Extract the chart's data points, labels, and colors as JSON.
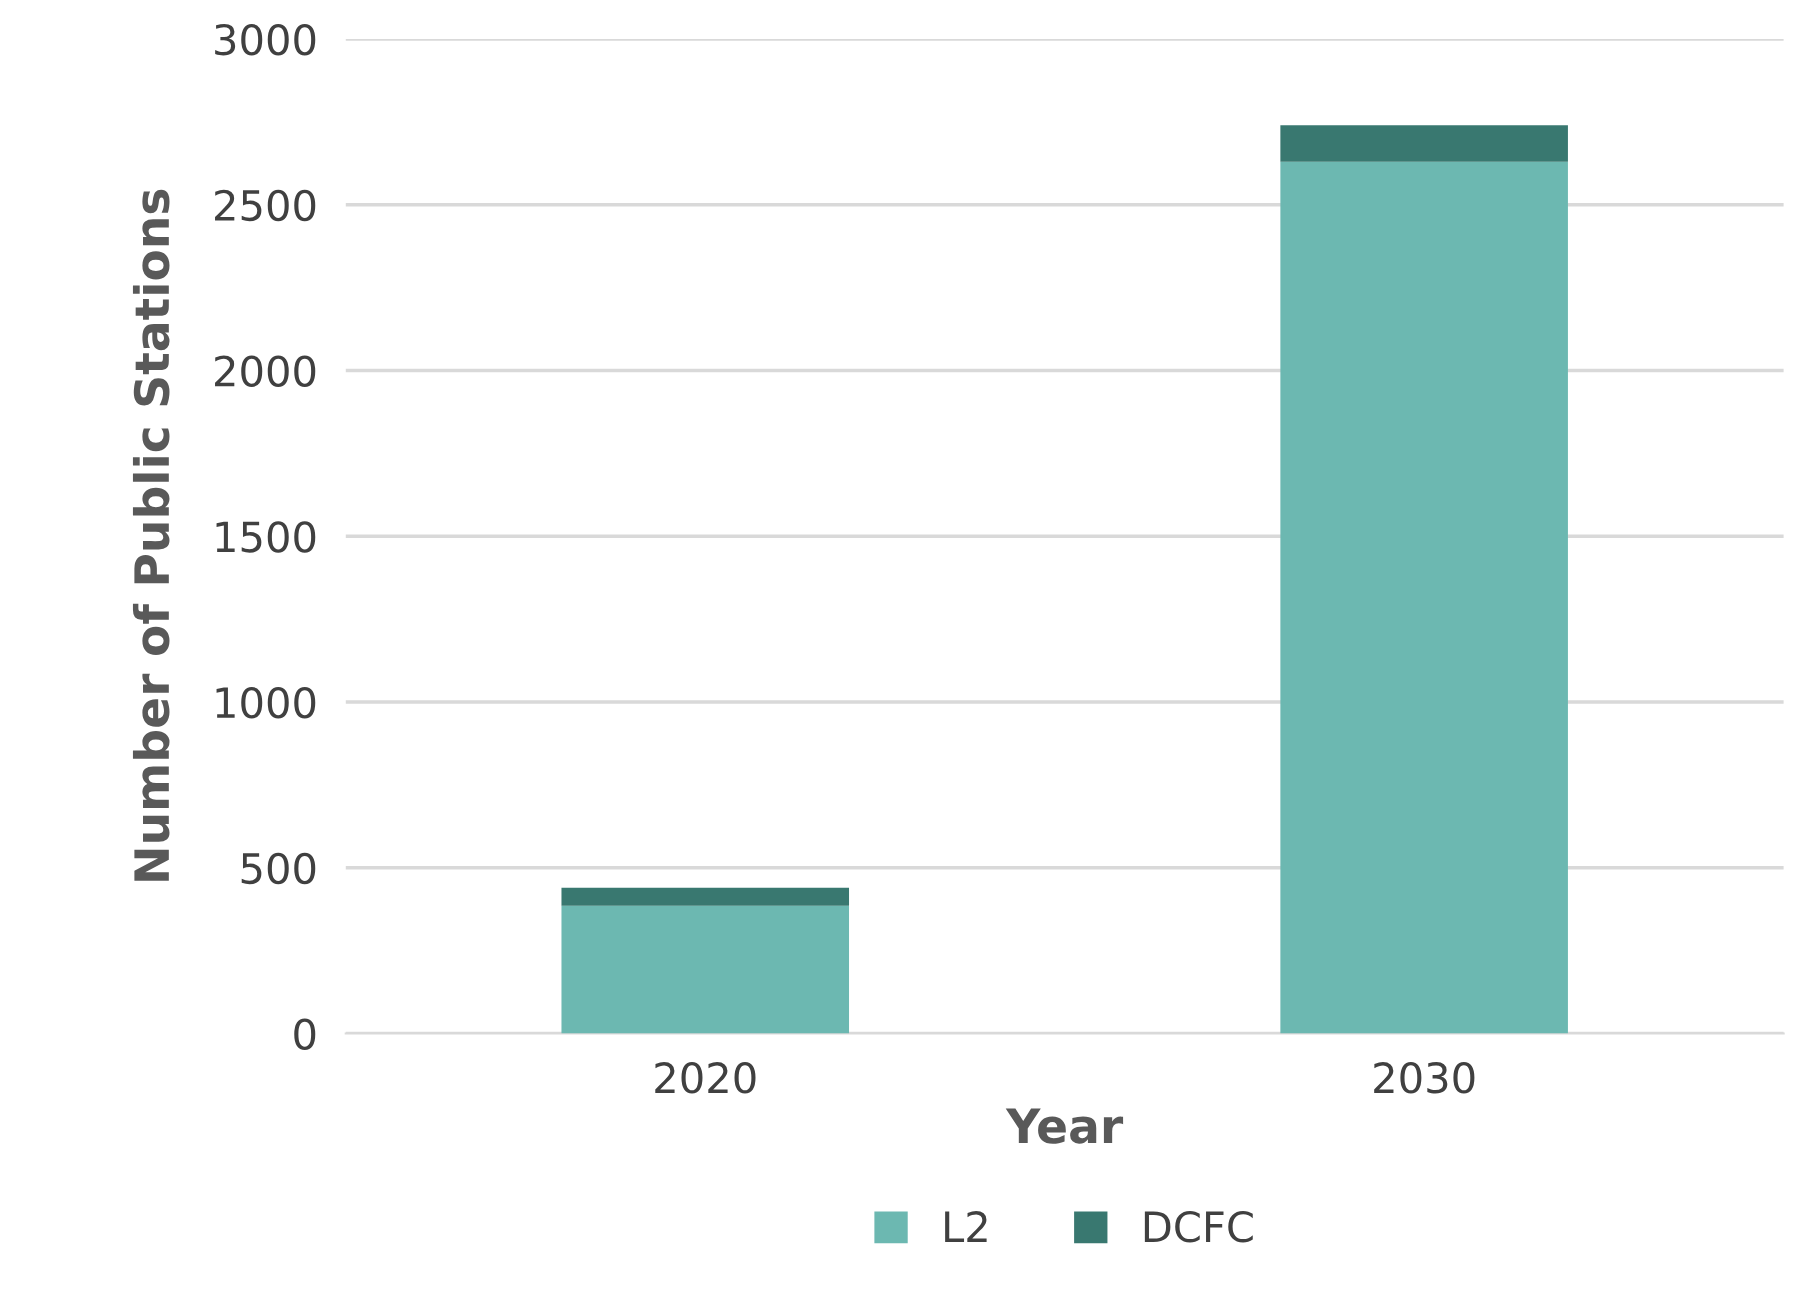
{
  "chart_data": {
    "type": "bar",
    "stacked": true,
    "xlabel": "Year",
    "ylabel": "Number of Public Stations",
    "categories": [
      "2020",
      "2030"
    ],
    "series": [
      {
        "name": "L2",
        "color": "#6cb8b1",
        "values": [
          385,
          2630
        ]
      },
      {
        "name": "DCFC",
        "color": "#397870",
        "values": [
          55,
          110
        ]
      }
    ],
    "ylim": [
      0,
      3000
    ],
    "yticks": [
      0,
      500,
      1000,
      1500,
      2000,
      2500,
      3000
    ],
    "grid": "y",
    "legend": "bottom"
  }
}
